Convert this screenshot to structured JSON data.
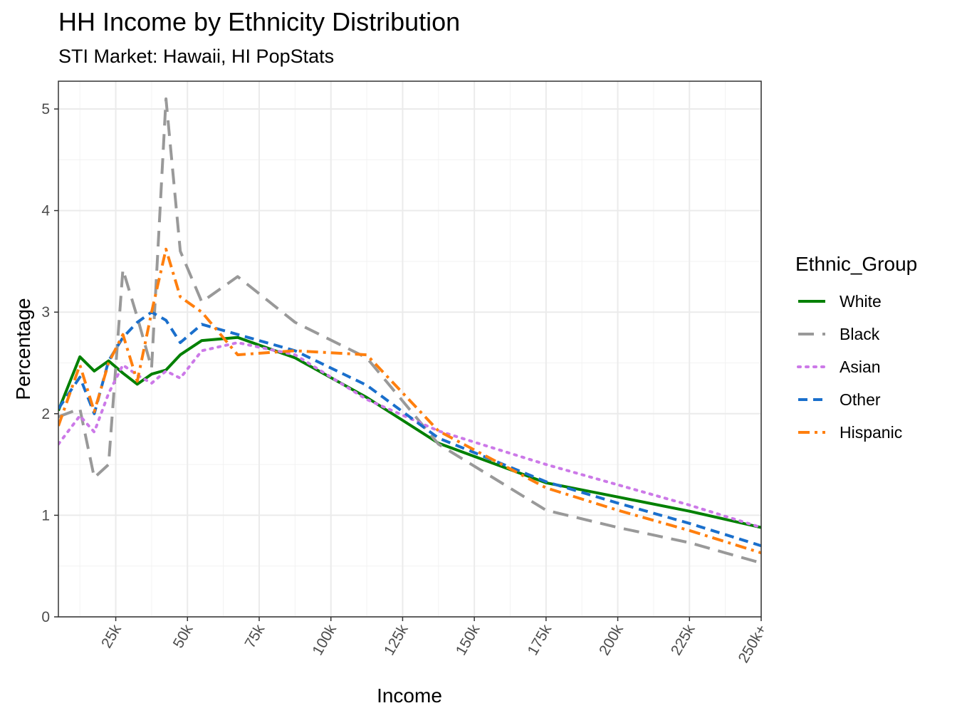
{
  "chart_data": {
    "type": "line",
    "title": "HH Income by Ethnicity Distribution",
    "subtitle": "STI Market: Hawaii, HI PopStats",
    "xlabel": "Income",
    "ylabel": "Percentage",
    "xlim": [
      5,
      250
    ],
    "ylim": [
      0,
      5.3
    ],
    "grid": true,
    "x_ticks": [
      {
        "value": 25,
        "label": "25k"
      },
      {
        "value": 50,
        "label": "50k"
      },
      {
        "value": 75,
        "label": "75k"
      },
      {
        "value": 100,
        "label": "100k"
      },
      {
        "value": 125,
        "label": "125k"
      },
      {
        "value": 150,
        "label": "150k"
      },
      {
        "value": 175,
        "label": "175k"
      },
      {
        "value": 200,
        "label": "200k"
      },
      {
        "value": 225,
        "label": "225k"
      },
      {
        "value": 250,
        "label": "250k+"
      }
    ],
    "y_ticks": [
      {
        "value": 0,
        "label": "0"
      },
      {
        "value": 1,
        "label": "1"
      },
      {
        "value": 2,
        "label": "2"
      },
      {
        "value": 3,
        "label": "3"
      },
      {
        "value": 4,
        "label": "4"
      },
      {
        "value": 5,
        "label": "5"
      }
    ],
    "legend_title": "Ethnic_Group",
    "legend_position": "right",
    "series": [
      {
        "name": "White",
        "color": "#008000",
        "dash": "solid",
        "x": [
          5,
          12.5,
          17.5,
          22.5,
          27.5,
          32.5,
          37.5,
          42.5,
          47.5,
          55,
          67.5,
          87.5,
          112.5,
          137.5,
          175,
          200,
          225,
          250
        ],
        "y": [
          2.03,
          2.56,
          2.42,
          2.52,
          2.4,
          2.29,
          2.39,
          2.43,
          2.58,
          2.72,
          2.75,
          2.55,
          2.16,
          1.71,
          1.32,
          1.18,
          1.04,
          0.88
        ]
      },
      {
        "name": "Black",
        "color": "#999999",
        "dash": "longdash",
        "x": [
          5,
          12.5,
          17.5,
          22.5,
          27.5,
          32.5,
          37.5,
          42.5,
          47.5,
          55,
          67.5,
          87.5,
          112.5,
          137.5,
          175,
          200,
          225,
          250
        ],
        "y": [
          1.97,
          2.05,
          1.37,
          1.5,
          3.42,
          2.95,
          2.45,
          5.1,
          3.6,
          3.1,
          3.35,
          2.9,
          2.55,
          1.7,
          1.05,
          0.88,
          0.73,
          0.53
        ]
      },
      {
        "name": "Asian",
        "color": "#cc79e8",
        "dash": "dotted",
        "x": [
          5,
          12.5,
          17.5,
          22.5,
          27.5,
          32.5,
          37.5,
          42.5,
          47.5,
          55,
          67.5,
          87.5,
          112.5,
          137.5,
          175,
          200,
          225,
          250
        ],
        "y": [
          1.7,
          1.98,
          1.82,
          2.2,
          2.48,
          2.38,
          2.3,
          2.42,
          2.35,
          2.62,
          2.7,
          2.58,
          2.14,
          1.83,
          1.5,
          1.3,
          1.1,
          0.88
        ]
      },
      {
        "name": "Other",
        "color": "#1a6fcc",
        "dash": "dashed",
        "x": [
          5,
          12.5,
          17.5,
          22.5,
          27.5,
          32.5,
          37.5,
          42.5,
          47.5,
          55,
          67.5,
          87.5,
          112.5,
          137.5,
          175,
          200,
          225,
          250
        ],
        "y": [
          2.05,
          2.36,
          2.0,
          2.52,
          2.75,
          2.9,
          3.0,
          2.92,
          2.7,
          2.88,
          2.78,
          2.62,
          2.28,
          1.76,
          1.33,
          1.12,
          0.92,
          0.7
        ]
      },
      {
        "name": "Hispanic",
        "color": "#ff7f0e",
        "dash": "dotdash",
        "x": [
          5,
          12.5,
          17.5,
          22.5,
          27.5,
          32.5,
          37.5,
          42.5,
          47.5,
          55,
          67.5,
          87.5,
          112.5,
          137.5,
          175,
          200,
          225,
          250
        ],
        "y": [
          1.88,
          2.48,
          2.02,
          2.5,
          2.78,
          2.32,
          3.0,
          3.62,
          3.15,
          3.0,
          2.58,
          2.62,
          2.58,
          1.83,
          1.27,
          1.05,
          0.85,
          0.63
        ]
      }
    ]
  }
}
